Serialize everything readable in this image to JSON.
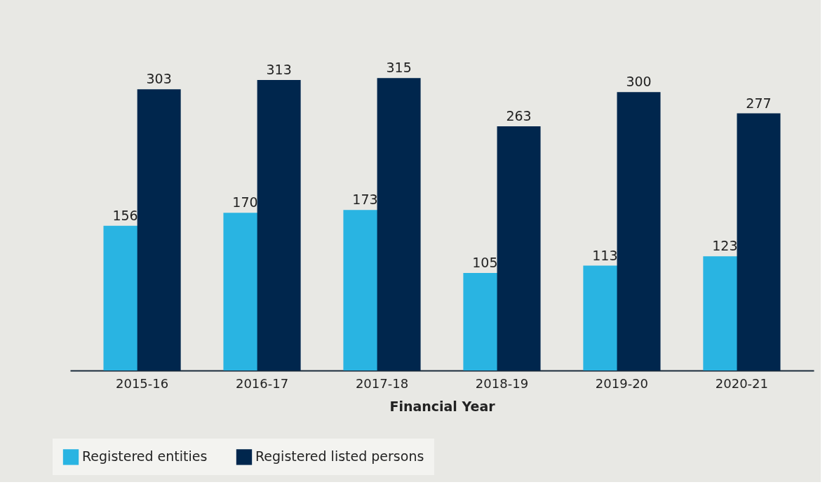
{
  "chart_data": {
    "type": "bar",
    "xlabel": "Financial Year",
    "categories": [
      "2015-16",
      "2016-17",
      "2017-18",
      "2018-19",
      "2019-20",
      "2020-21"
    ],
    "series": [
      {
        "name": "Registered entities",
        "color": "#29b4e2",
        "values": [
          156,
          170,
          173,
          105,
          113,
          123
        ]
      },
      {
        "name": "Registered listed persons",
        "color": "#00264d",
        "values": [
          303,
          313,
          315,
          263,
          300,
          277
        ]
      }
    ],
    "data_labels": true,
    "legend": "bottom left",
    "grid": false
  }
}
